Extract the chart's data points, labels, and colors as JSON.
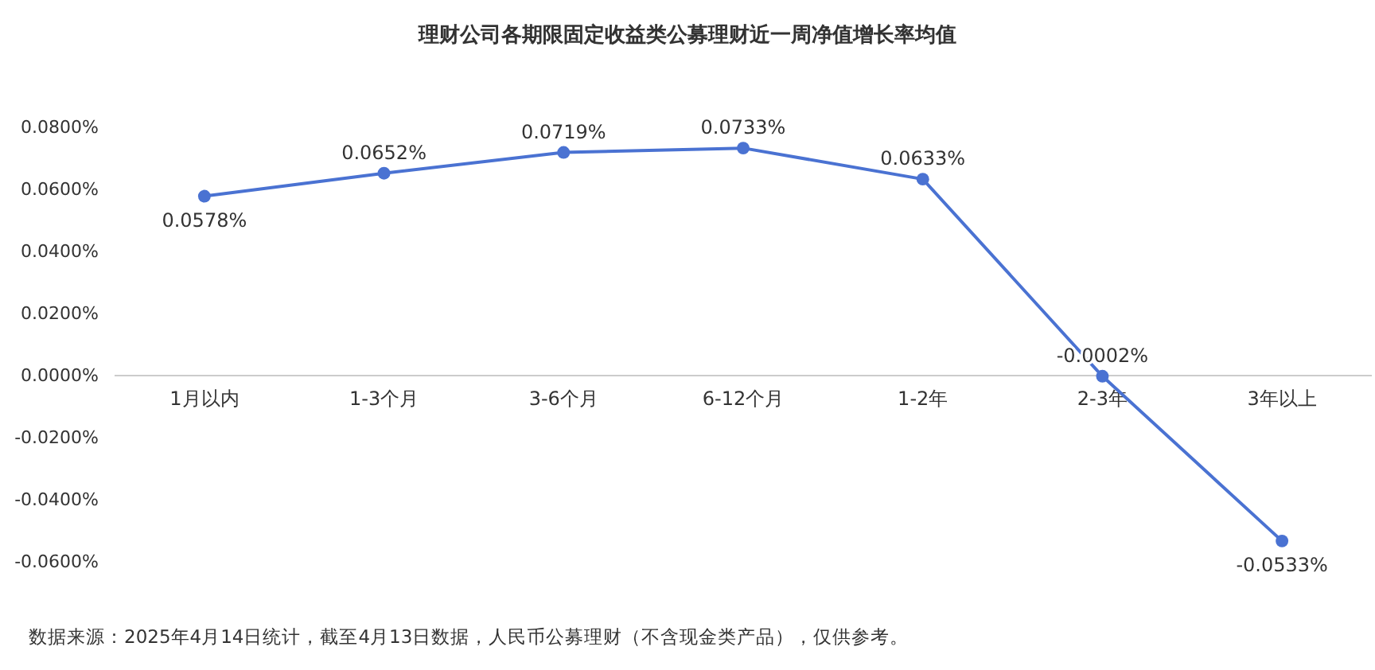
{
  "chart_data": {
    "type": "line",
    "title": "理财公司各期限固定收益类公募理财近一周净值增长率均值",
    "categories": [
      "1月以内",
      "1-3个月",
      "3-6个月",
      "6-12个月",
      "1-2年",
      "2-3年",
      "3年以上"
    ],
    "series": [
      {
        "color": "#4a72d2",
        "values": [
          0.0578,
          0.0652,
          0.0719,
          0.0733,
          0.0633,
          -0.0002,
          -0.0533
        ],
        "value_labels": [
          "0.0578%",
          "0.0652%",
          "0.0719%",
          "0.0733%",
          "0.0633%",
          "-0.0002%",
          "-0.0533%"
        ]
      }
    ],
    "ylim": [
      -0.06,
      0.08
    ],
    "yticks": [
      {
        "value": -0.06,
        "label": "-0.0600%"
      },
      {
        "value": -0.04,
        "label": "-0.0400%"
      },
      {
        "value": -0.02,
        "label": "-0.0200%"
      },
      {
        "value": 0,
        "label": "0.0000%"
      },
      {
        "value": 0.02,
        "label": "0.0200%"
      },
      {
        "value": 0.04,
        "label": "0.0400%"
      },
      {
        "value": 0.06,
        "label": "0.0600%"
      },
      {
        "value": 0.08,
        "label": "0.0800%"
      }
    ],
    "marker": "circle",
    "annotations": [
      "数据来源：2025年4月14日统计，截至4月13日数据，人民币公募理财（不含现金类产品），仅供参考。"
    ]
  }
}
